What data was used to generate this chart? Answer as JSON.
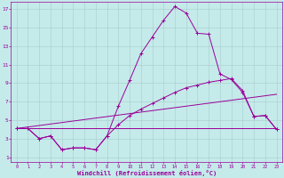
{
  "xlabel": "Windchill (Refroidissement éolien,°C)",
  "background_color": "#c5eaea",
  "line_color": "#990099",
  "grid_color": "#aacccc",
  "xlim": [
    -0.5,
    23.5
  ],
  "ylim": [
    0.5,
    17.8
  ],
  "xticks": [
    0,
    1,
    2,
    3,
    4,
    5,
    6,
    7,
    8,
    9,
    10,
    11,
    12,
    13,
    14,
    15,
    16,
    17,
    18,
    19,
    20,
    21,
    22,
    23
  ],
  "yticks": [
    1,
    3,
    5,
    7,
    9,
    11,
    13,
    15,
    17
  ],
  "line1_x": [
    0,
    1,
    2,
    3,
    4,
    5,
    6,
    7,
    8,
    9,
    10,
    11,
    12,
    13,
    14,
    15,
    16,
    17,
    18,
    19,
    20,
    21,
    22,
    23
  ],
  "line1_y": [
    4.1,
    4.1,
    3.0,
    3.3,
    1.8,
    2.0,
    2.0,
    1.8,
    3.3,
    6.5,
    9.3,
    12.2,
    14.0,
    15.8,
    17.3,
    16.6,
    14.4,
    14.3,
    10.0,
    9.4,
    8.0,
    5.4,
    5.5,
    4.0
  ],
  "line2_x": [
    0,
    1,
    2,
    3,
    4,
    5,
    6,
    7,
    8,
    9,
    10,
    11,
    12,
    13,
    14,
    15,
    16,
    17,
    18,
    19,
    20,
    21,
    22,
    23
  ],
  "line2_y": [
    4.1,
    4.1,
    3.0,
    3.3,
    1.8,
    2.0,
    2.0,
    1.8,
    3.3,
    4.5,
    5.5,
    6.2,
    6.8,
    7.4,
    8.0,
    8.5,
    8.8,
    9.1,
    9.3,
    9.5,
    8.2,
    5.4,
    5.5,
    4.0
  ],
  "line3_x": [
    0,
    23
  ],
  "line3_y": [
    4.1,
    4.1
  ],
  "line4_x": [
    0,
    23
  ],
  "line4_y": [
    4.1,
    7.8
  ]
}
